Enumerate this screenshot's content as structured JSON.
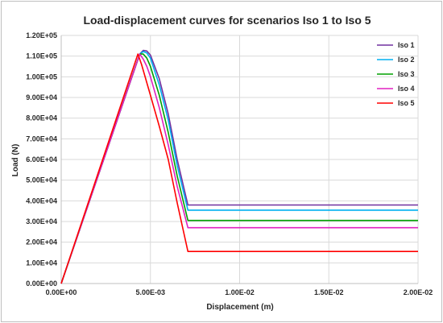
{
  "chart_data": {
    "type": "line",
    "title": "Load-displacement curves for scenarios Iso 1 to Iso 5",
    "xlabel": "Displacement (m)",
    "ylabel": "Load (N)",
    "xlim": [
      0,
      0.02
    ],
    "ylim": [
      0,
      120000
    ],
    "x_ticks": [
      "0.00E+00",
      "5.00E-03",
      "1.00E-02",
      "1.50E-02",
      "2.00E-02"
    ],
    "y_ticks": [
      "0.00E+00",
      "1.00E+04",
      "2.00E+04",
      "3.00E+04",
      "4.00E+04",
      "5.00E+04",
      "6.00E+04",
      "7.00E+04",
      "8.00E+04",
      "9.00E+04",
      "1.00E+05",
      "1.10E+05",
      "1.20E+05"
    ],
    "grid": true,
    "legend_position": "top-right",
    "series": [
      {
        "name": "Iso 1",
        "color": "#7030a0",
        "x": [
          0,
          0.0044,
          0.0046,
          0.0048,
          0.005,
          0.0055,
          0.006,
          0.0065,
          0.0071,
          0.02
        ],
        "y": [
          0,
          111000,
          112800,
          112500,
          110500,
          99000,
          82000,
          60000,
          38000,
          38000
        ]
      },
      {
        "name": "Iso 2",
        "color": "#00b0f0",
        "x": [
          0,
          0.0044,
          0.0046,
          0.0048,
          0.005,
          0.0055,
          0.006,
          0.0065,
          0.0071,
          0.02
        ],
        "y": [
          0,
          111000,
          112200,
          111500,
          109000,
          96000,
          79000,
          57000,
          35500,
          35500
        ]
      },
      {
        "name": "Iso 3",
        "color": "#00a000",
        "x": [
          0,
          0.0044,
          0.0046,
          0.0048,
          0.005,
          0.0055,
          0.006,
          0.0065,
          0.0071,
          0.02
        ],
        "y": [
          0,
          111000,
          111000,
          109000,
          105000,
          91000,
          73000,
          52000,
          30500,
          30500
        ]
      },
      {
        "name": "Iso 4",
        "color": "#e020c0",
        "x": [
          0,
          0.0044,
          0.0046,
          0.0048,
          0.005,
          0.0055,
          0.006,
          0.0065,
          0.0071,
          0.02
        ],
        "y": [
          0,
          111000,
          108500,
          105000,
          100000,
          85000,
          67000,
          47000,
          27000,
          27000
        ]
      },
      {
        "name": "Iso 5",
        "color": "#ff0000",
        "x": [
          0,
          0.0043,
          0.0045,
          0.005,
          0.0055,
          0.006,
          0.0065,
          0.0071,
          0.02
        ],
        "y": [
          0,
          111000,
          106000,
          91000,
          76000,
          60000,
          39000,
          15500,
          15500
        ]
      }
    ]
  }
}
